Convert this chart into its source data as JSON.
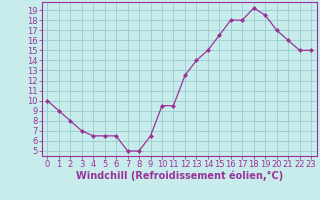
{
  "x": [
    0,
    1,
    2,
    3,
    4,
    5,
    6,
    7,
    8,
    9,
    10,
    11,
    12,
    13,
    14,
    15,
    16,
    17,
    18,
    19,
    20,
    21,
    22,
    23
  ],
  "y": [
    10,
    9,
    8,
    7,
    6.5,
    6.5,
    6.5,
    5,
    5,
    6.5,
    9.5,
    9.5,
    12.5,
    14,
    15,
    16.5,
    18,
    18,
    19.2,
    18.5,
    17,
    16,
    15,
    15
  ],
  "line_color": "#993399",
  "marker_color": "#993399",
  "bg_color": "#c8ecec",
  "grid_color": "#99cccc",
  "xlabel": "Windchill (Refroidissement éolien,°C)",
  "xlabel_color": "#993399",
  "ylabel_ticks": [
    5,
    6,
    7,
    8,
    9,
    10,
    11,
    12,
    13,
    14,
    15,
    16,
    17,
    18,
    19
  ],
  "xlim": [
    -0.5,
    23.5
  ],
  "ylim": [
    4.5,
    19.8
  ],
  "axis_label_color": "#993399",
  "tick_label_color": "#993399",
  "border_color": "#993399",
  "font_size_ticks": 6.0,
  "font_size_xlabel": 7.0
}
